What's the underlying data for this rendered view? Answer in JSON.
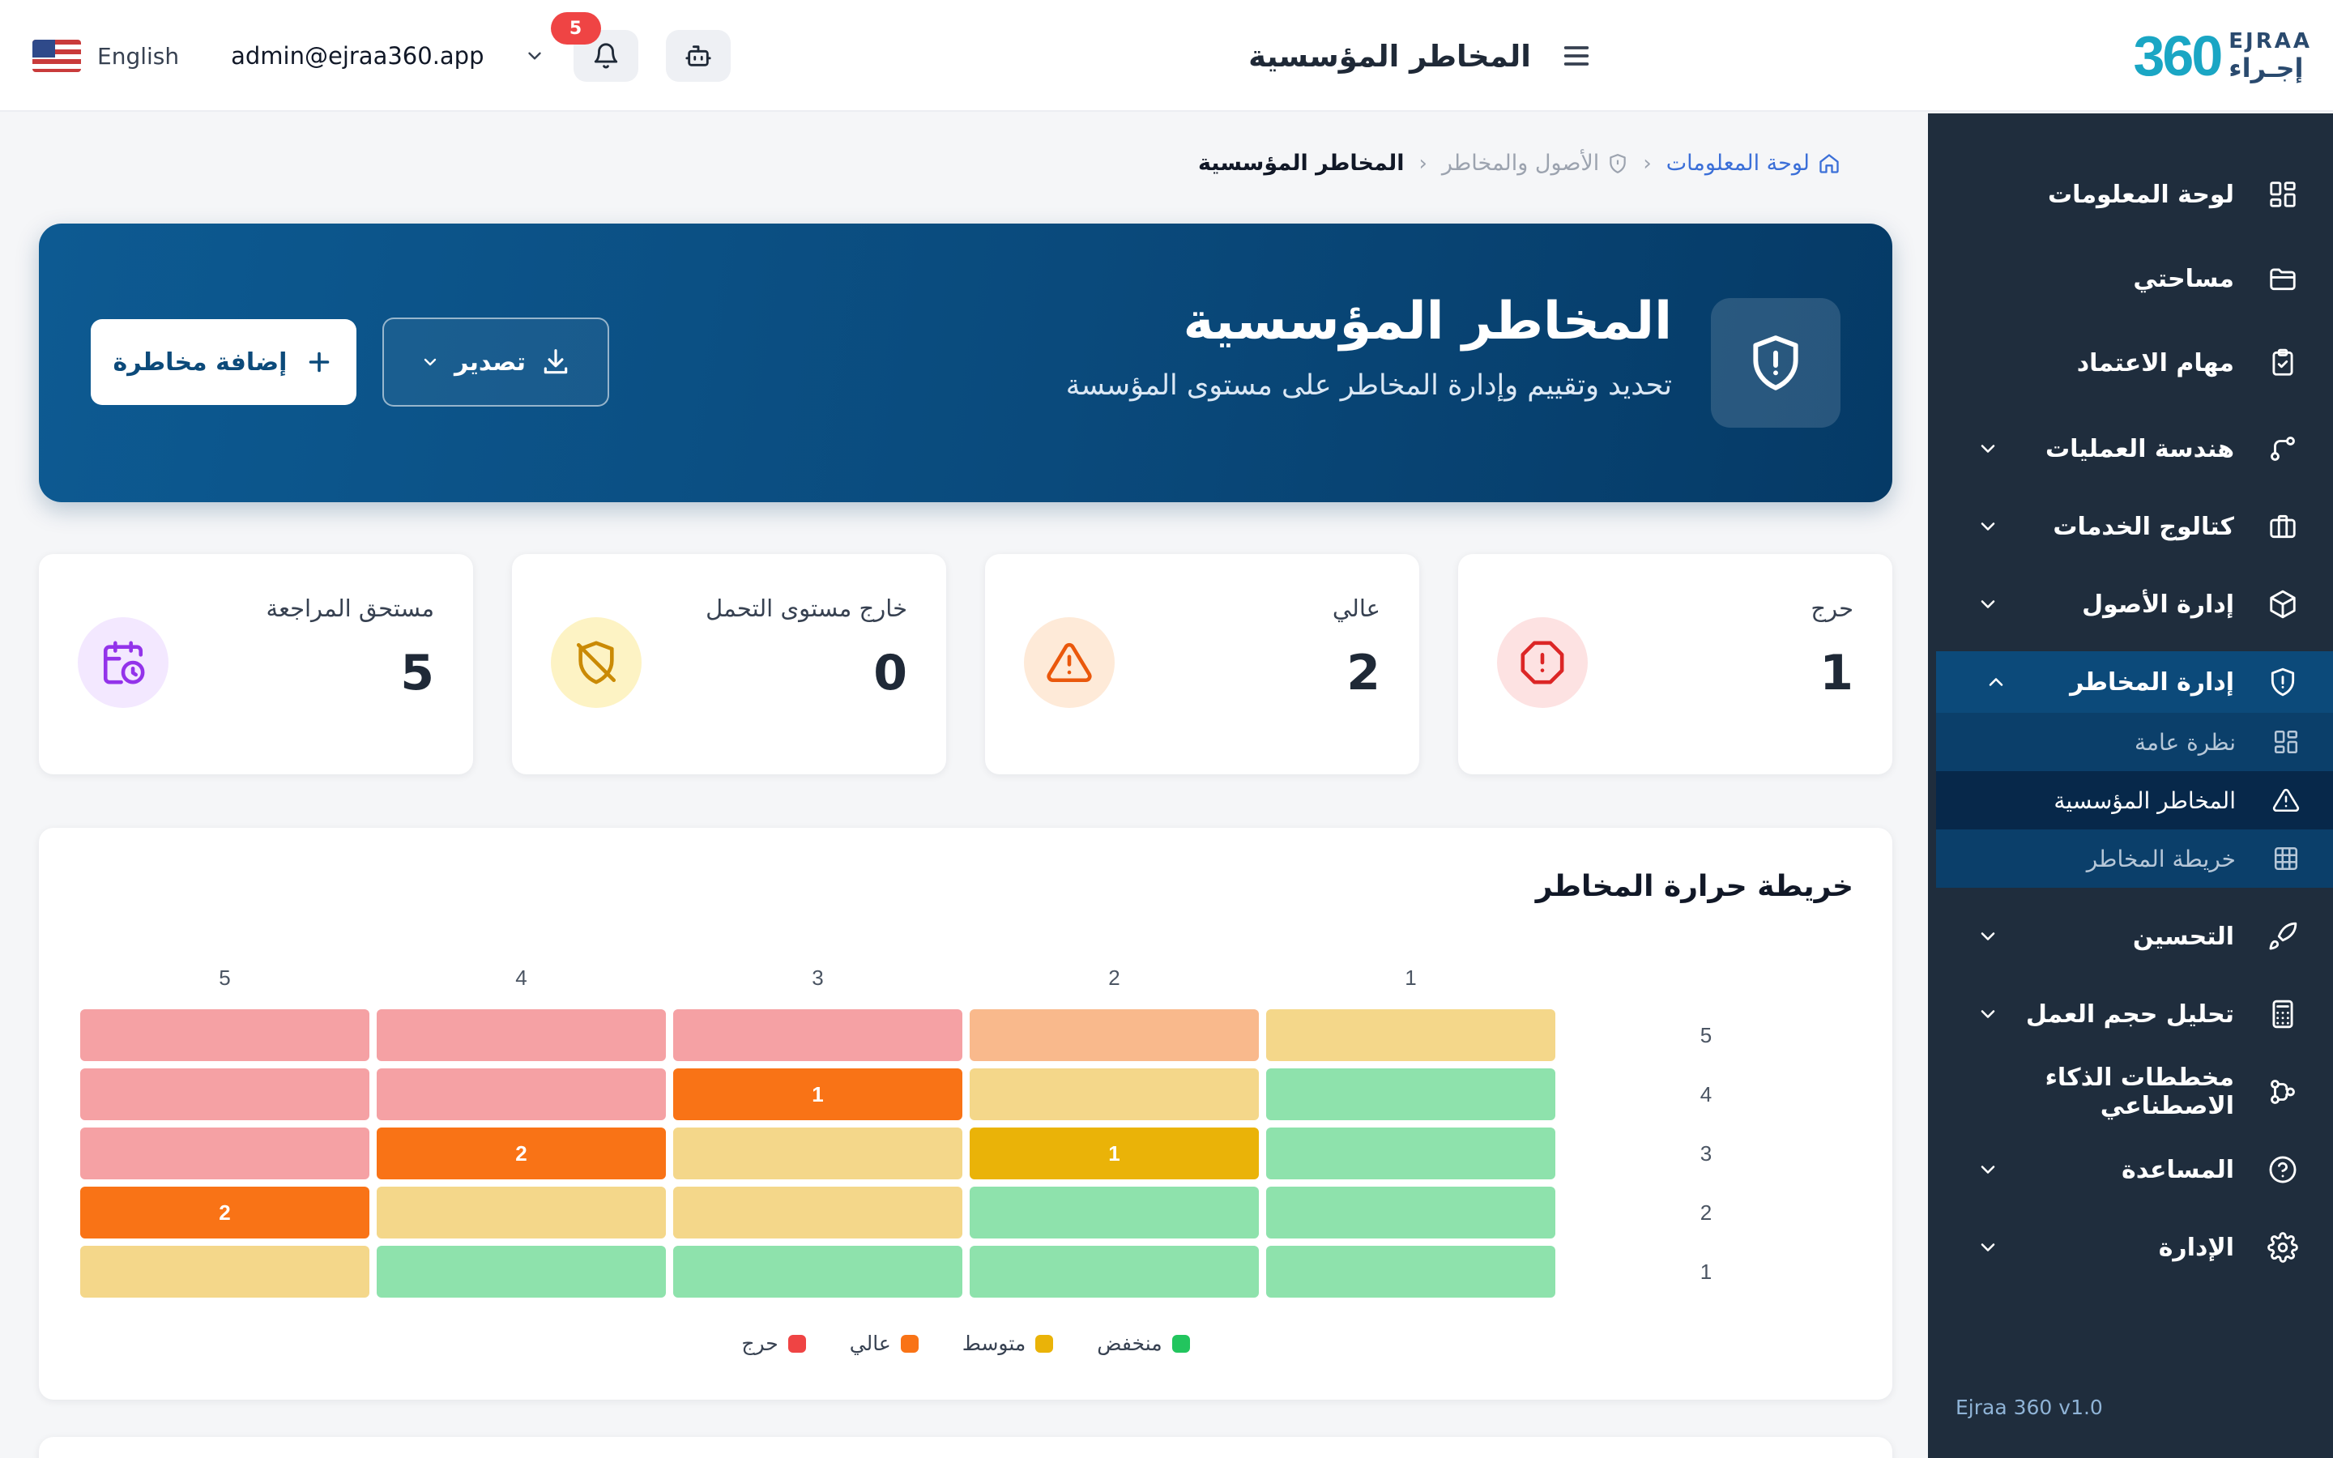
{
  "header": {
    "language": "English",
    "user_email": "admin@ejraa360.app",
    "notifications_count": "5",
    "page_title": "المخاطر المؤسسية",
    "logo": {
      "mark": "360",
      "en": "EJRAA",
      "ar": "إجـراء"
    }
  },
  "sidebar": {
    "items": [
      {
        "label": "لوحة المعلومات",
        "icon": "dashboard-grid-icon"
      },
      {
        "label": "مساحتي",
        "icon": "folder-icon"
      },
      {
        "label": "مهام الاعتماد",
        "icon": "clipboard-check-icon"
      },
      {
        "label": "هندسة العمليات",
        "icon": "process-flow-icon"
      },
      {
        "label": "كتالوج الخدمات",
        "icon": "briefcase-icon"
      },
      {
        "label": "إدارة الأصول",
        "icon": "box-icon"
      },
      {
        "label": "إدارة المخاطر",
        "icon": "shield-alert-icon"
      },
      {
        "label": "التحسين",
        "icon": "rocket-icon"
      },
      {
        "label": "تحليل حجم العمل",
        "icon": "calculator-icon"
      },
      {
        "label": "مخططات الذكاء الاصطناعي",
        "icon": "ai-flow-icon"
      },
      {
        "label": "المساعدة",
        "icon": "help-circle-icon"
      },
      {
        "label": "الإدارة",
        "icon": "gear-icon"
      }
    ],
    "sub_items": [
      {
        "label": "نظرة عامة",
        "icon": "grid-icon"
      },
      {
        "label": "المخاطر المؤسسية",
        "icon": "warning-triangle-icon"
      },
      {
        "label": "خريطة المخاطر",
        "icon": "table-grid-icon"
      }
    ],
    "version": "Ejraa 360 v1.0"
  },
  "breadcrumb": {
    "home": "لوحة المعلومات",
    "middle": "الأصول والمخاطر",
    "current": "المخاطر المؤسسية"
  },
  "hero": {
    "title": "المخاطر المؤسسية",
    "subtitle": "تحديد وتقييم وإدارة المخاطر على مستوى المؤسسة",
    "export_label": "تصدير",
    "add_label": "إضافة مخاطرة"
  },
  "stats": [
    {
      "label": "حرج",
      "value": "1",
      "color": "#dc2626",
      "bg": "#fde2e2",
      "icon": "alert-octagon-icon"
    },
    {
      "label": "عالي",
      "value": "2",
      "color": "#ea580c",
      "bg": "#feead8",
      "icon": "alert-triangle-icon"
    },
    {
      "label": "خارج مستوى التحمل",
      "value": "0",
      "color": "#ca8a04",
      "bg": "#fdf3c4",
      "icon": "shield-off-icon"
    },
    {
      "label": "مستحق المراجعة",
      "value": "5",
      "color": "#9333ea",
      "bg": "#f3e8ff",
      "icon": "calendar-clock-icon"
    }
  ],
  "heatmap": {
    "title": "خريطة حرارة المخاطر",
    "chart_data": {
      "type": "heatmap",
      "x_labels": [
        "1",
        "2",
        "3",
        "4",
        "5"
      ],
      "y_labels": [
        "5",
        "4",
        "3",
        "2",
        "1"
      ],
      "levels": [
        [
          "medium",
          "high",
          "critical",
          "critical",
          "critical"
        ],
        [
          "low",
          "medium",
          "high",
          "critical",
          "critical"
        ],
        [
          "low",
          "medium",
          "medium",
          "high",
          "critical"
        ],
        [
          "low",
          "low",
          "medium",
          "medium",
          "high"
        ],
        [
          "low",
          "low",
          "low",
          "low",
          "medium"
        ]
      ],
      "counts": [
        [
          null,
          null,
          null,
          null,
          null
        ],
        [
          null,
          null,
          1,
          null,
          null
        ],
        [
          null,
          1,
          null,
          2,
          null
        ],
        [
          null,
          null,
          null,
          null,
          2
        ],
        [
          null,
          null,
          null,
          null,
          null
        ]
      ]
    },
    "level_colors": {
      "low": "#8ee2ac",
      "medium": "#f4d78a",
      "high": "#f9b98c",
      "critical": "#f5a1a4"
    },
    "active_colors": {
      "r1c2": "#f97316",
      "r2c1": "#eab308",
      "r2c3": "#f97316",
      "r3c4": "#f97316"
    },
    "legend": [
      {
        "label": "منخفض",
        "color": "#22c55e"
      },
      {
        "label": "متوسط",
        "color": "#eab308"
      },
      {
        "label": "عالي",
        "color": "#f97316"
      },
      {
        "label": "حرج",
        "color": "#ef4444"
      }
    ]
  }
}
